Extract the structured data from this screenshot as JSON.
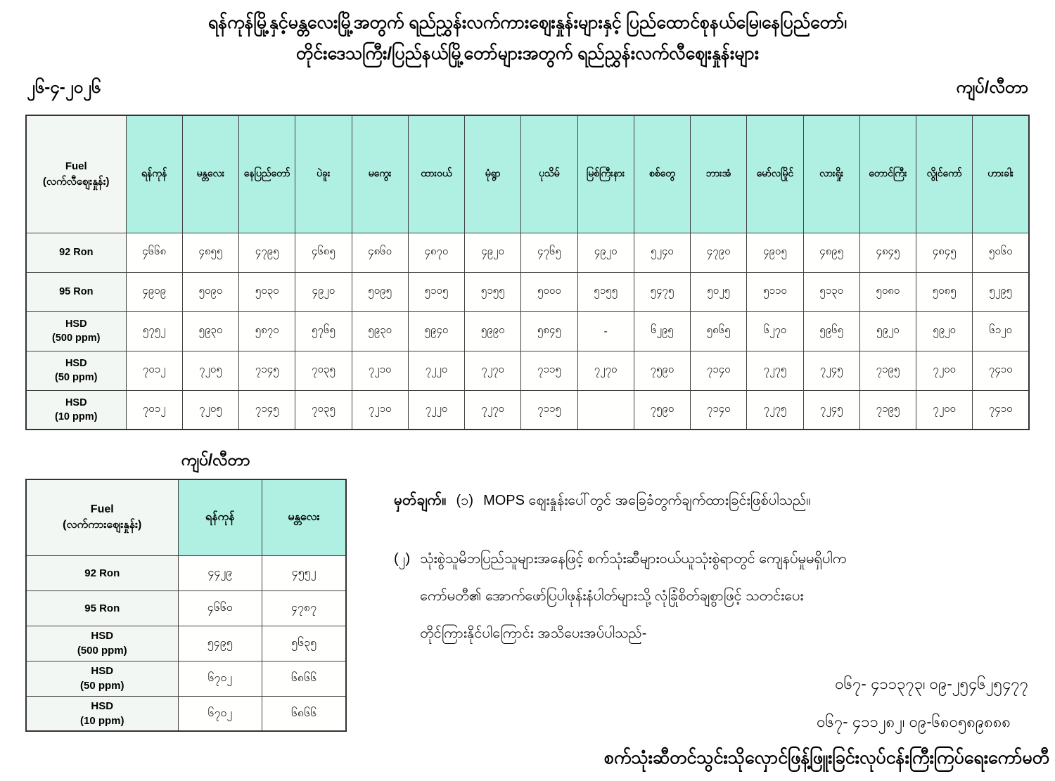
{
  "title": {
    "line1": "ရန်ကုန်မြို့နှင့်မန္တလေးမြို့အတွက် ရည်ညွှန်းလက်ကားဈေးနှုန်းများနှင့် ပြည်ထောင်စုနယ်မြေ၊နေပြည်တော်၊",
    "line2": "တိုင်းဒေသကြီး/ပြည်နယ်မြို့တော်များအတွက် ရည်ညွှန်းလက်လီဈေးနှုန်းများ"
  },
  "date": "၂၆-၄-၂၀၂၆",
  "unit_label_top": "ကျပ်/လီတာ",
  "unit_label_small": "ကျပ်/လီတာ",
  "retail_table": {
    "fuel_header_line1": "Fuel",
    "fuel_header_line2": "(လက်လီဈေးနှုန်း)",
    "cities": [
      "ရန်ကုန်",
      "မန္တလေး",
      "နေပြည်တော်",
      "ပဲခူး",
      "မကွေး",
      "ထားဝယ်",
      "မုံရွာ",
      "ပုသိမ်",
      "မြစ်ကြီးနား",
      "စစ်တွေ",
      "ဘားအံ",
      "မော်လမြိုင်",
      "လားရှိုး",
      "တောင်ကြီး",
      "လွိုင်ကော်",
      "ဟားခါး"
    ],
    "rows": [
      {
        "label_lines": [
          "92 Ron"
        ],
        "values": [
          "၄၆၆၈",
          "၄၈၅၅",
          "၄၇၉၅",
          "၄၆၈၅",
          "၄၈၆၀",
          "၄၈၇၀",
          "၄၉၂၀",
          "၄၇၆၅",
          "၄၉၂၀",
          "၅၂၄၀",
          "၄၇၉၀",
          "၄၉၀၅",
          "၄၈၉၅",
          "၄၈၄၅",
          "၄၈၄၅",
          "၅၀၆၀"
        ]
      },
      {
        "label_lines": [
          "95 Ron"
        ],
        "values": [
          "၄၉၀၉",
          "၅၀၉၀",
          "၅၀၃၀",
          "၄၉၂၀",
          "၅၀၉၅",
          "၅၁၀၅",
          "၅၁၅၅",
          "၅၀၀၀",
          "၅၁၅၅",
          "၅၄၇၅",
          "၅၀၂၅",
          "၅၁၁၀",
          "၅၁၃၀",
          "၅၀၈၀",
          "၅၀၈၅",
          "၅၂၉၅"
        ]
      },
      {
        "label_lines": [
          "HSD",
          "(500 ppm)"
        ],
        "values": [
          "၅၇၅၂",
          "၅၉၃၀",
          "၅၈၇၀",
          "၅၇၆၅",
          "၅၉၃၀",
          "၅၉၄၀",
          "၅၉၉၀",
          "၅၈၄၅",
          "-",
          "၆၂၉၅",
          "၅၈၆၅",
          "၆၂၇၀",
          "၅၉၆၅",
          "၅၉၂၀",
          "၅၉၂၀",
          "၆၁၂၀"
        ]
      },
      {
        "label_lines": [
          "HSD",
          "(50 ppm)"
        ],
        "values": [
          "၇၀၁၂",
          "၇၂၀၅",
          "၇၁၄၅",
          "၇၀၃၅",
          "၇၂၁၀",
          "၇၂၂၀",
          "၇၂၇၀",
          "၇၁၁၅",
          "၇၂၇၀",
          "၇၅၉၀",
          "၇၁၄၀",
          "၇၂၇၅",
          "၇၂၄၅",
          "၇၁၉၅",
          "၇၂၀၀",
          "၇၄၁၀"
        ]
      },
      {
        "label_lines": [
          "HSD",
          "(10 ppm)"
        ],
        "values": [
          "၇၀၁၂",
          "၇၂၀၅",
          "၇၁၄၅",
          "၇၀၃၅",
          "၇၂၁၀",
          "၇၂၂၀",
          "၇၂၇၀",
          "၇၁၁၅",
          "",
          "၇၅၉၀",
          "၇၁၄၀",
          "၇၂၇၅",
          "၇၂၄၅",
          "၇၁၉၅",
          "၇၂၀၀",
          "၇၄၁၀"
        ]
      }
    ]
  },
  "wholesale_table": {
    "fuel_header_line1": "Fuel",
    "fuel_header_line2": "(လက်ကားဈေးနှုန်း)",
    "cities": [
      "ရန်ကုန်",
      "မန္တလေး"
    ],
    "rows": [
      {
        "label_lines": [
          "92 Ron"
        ],
        "values": [
          "၄၄၂၉",
          "၄၅၅၂"
        ]
      },
      {
        "label_lines": [
          "95 Ron"
        ],
        "values": [
          "၄၆၆၀",
          "၄၇၈၇"
        ]
      },
      {
        "label_lines": [
          "HSD",
          "(500 ppm)"
        ],
        "values": [
          "၅၄၉၅",
          "၅၆၃၅"
        ]
      },
      {
        "label_lines": [
          "HSD",
          "(50 ppm)"
        ],
        "values": [
          "၆၇၀၂",
          "၆၈၆၆"
        ]
      },
      {
        "label_lines": [
          "HSD",
          "(10 ppm)"
        ],
        "values": [
          "၆၇၀၂",
          "၆၈၆၆"
        ]
      }
    ]
  },
  "notes": {
    "heading": "မှတ်ချက်။",
    "item1_no": "(၁)",
    "item1_text": "MOPS ဈေးနှုန်းပေါ်တွင် အခြေခံတွက်ချက်ထားခြင်းဖြစ်ပါသည်။",
    "item2_no": "(၂)",
    "item2_line1": "သုံးစွဲသူမိဘပြည်သူများအနေဖြင့် စက်သုံးဆီများဝယ်ယူသုံးစွဲရာတွင် ကျေနပ်မှုမရှိပါက",
    "item2_line2": "ကော်မတီ၏ အောက်ဖော်ပြပါဖုန်းနံပါတ်များသို့ လုံခြုံစိတ်ချစွာဖြင့် သတင်းပေး",
    "item2_line3": "တိုင်ကြားနိုင်ပါကြောင်း အသိပေးအပ်ပါသည်-",
    "phone1": "၀၆၇- ၄၁၁၃၇၃၊ ၀၉-၂၅၄၆၂၅၄၇၇",
    "phone2": "၀၆၇- ၄၁၁၂၈၂၊ ၀၉-၆၈၀၅၈၉၈၈၈"
  },
  "footer": "စက်သုံးဆီတင်သွင်းသိုလှောင်ဖြန့်ဖြူးခြင်းလုပ်ငန်းကြီးကြပ်ရေးကော်မတီ",
  "colors": {
    "header_teal": "#b0f0e2",
    "label_bg": "#f3f7f4",
    "border": "#404040",
    "text": "#000000"
  }
}
